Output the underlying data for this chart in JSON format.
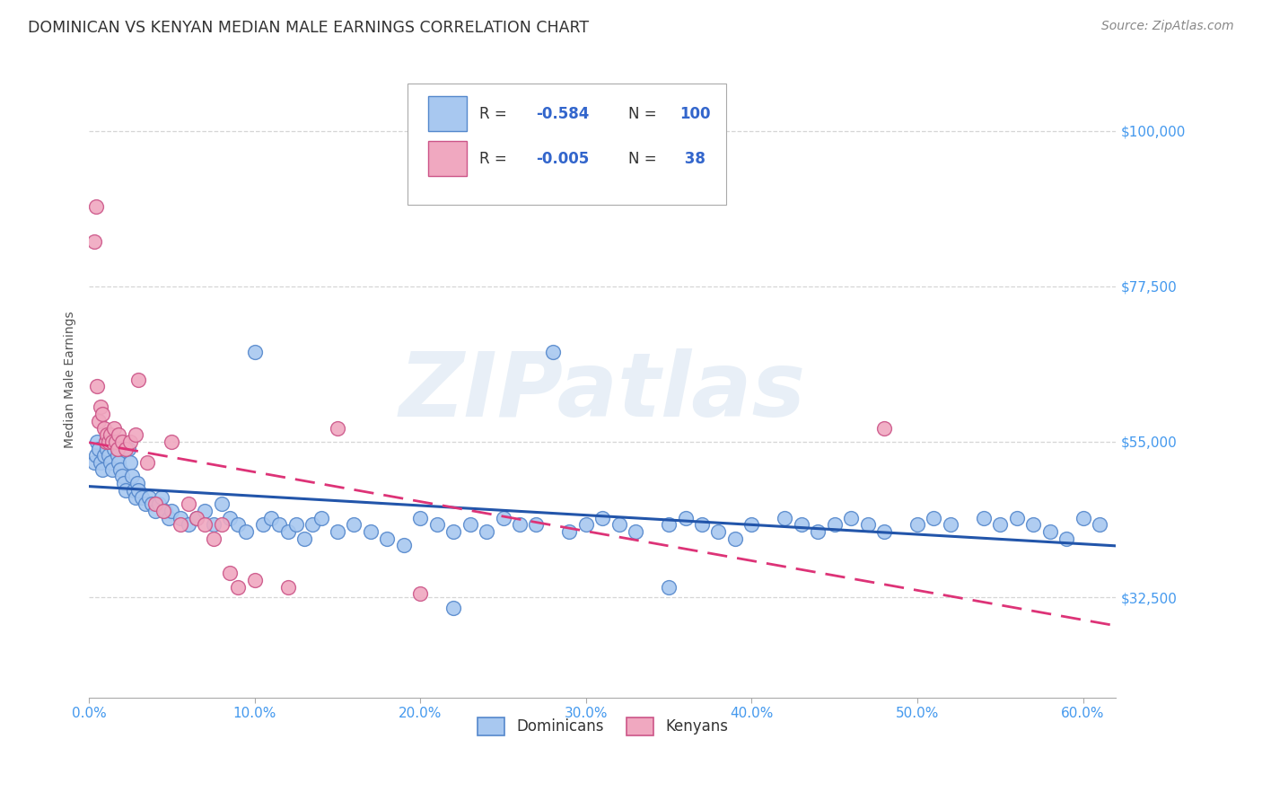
{
  "title": "DOMINICAN VS KENYAN MEDIAN MALE EARNINGS CORRELATION CHART",
  "source": "Source: ZipAtlas.com",
  "ylabel": "Median Male Earnings",
  "xlim": [
    0.0,
    0.62
  ],
  "ylim": [
    18000,
    110000
  ],
  "ytick_labels": [
    "$32,500",
    "$55,000",
    "$77,500",
    "$100,000"
  ],
  "ytick_values": [
    32500,
    55000,
    77500,
    100000
  ],
  "xtick_labels": [
    "0.0%",
    "10.0%",
    "20.0%",
    "30.0%",
    "40.0%",
    "50.0%",
    "60.0%"
  ],
  "xtick_values": [
    0.0,
    0.1,
    0.2,
    0.3,
    0.4,
    0.5,
    0.6
  ],
  "dominican_color": "#a8c8f0",
  "kenyan_color": "#f0a8c0",
  "dominican_edge": "#5588cc",
  "kenyan_edge": "#cc5588",
  "dominican_line_color": "#2255aa",
  "kenyan_line_color": "#dd3377",
  "watermark": "ZIPatlas",
  "background_color": "#ffffff",
  "grid_color": "#cccccc",
  "dominican_x": [
    0.003,
    0.004,
    0.005,
    0.006,
    0.007,
    0.008,
    0.009,
    0.01,
    0.011,
    0.012,
    0.013,
    0.014,
    0.015,
    0.016,
    0.017,
    0.018,
    0.019,
    0.02,
    0.021,
    0.022,
    0.024,
    0.025,
    0.026,
    0.027,
    0.028,
    0.029,
    0.03,
    0.032,
    0.034,
    0.036,
    0.038,
    0.04,
    0.042,
    0.044,
    0.046,
    0.048,
    0.05,
    0.055,
    0.06,
    0.065,
    0.07,
    0.075,
    0.08,
    0.085,
    0.09,
    0.095,
    0.1,
    0.105,
    0.11,
    0.115,
    0.12,
    0.125,
    0.13,
    0.135,
    0.14,
    0.15,
    0.16,
    0.17,
    0.18,
    0.19,
    0.2,
    0.21,
    0.22,
    0.23,
    0.24,
    0.25,
    0.26,
    0.27,
    0.28,
    0.29,
    0.3,
    0.31,
    0.32,
    0.33,
    0.35,
    0.36,
    0.37,
    0.38,
    0.39,
    0.4,
    0.42,
    0.43,
    0.44,
    0.45,
    0.46,
    0.47,
    0.48,
    0.5,
    0.51,
    0.52,
    0.54,
    0.55,
    0.56,
    0.57,
    0.58,
    0.59,
    0.6,
    0.61,
    0.35,
    0.22
  ],
  "dominican_y": [
    52000,
    53000,
    55000,
    54000,
    52000,
    51000,
    53000,
    55000,
    54000,
    53000,
    52000,
    51000,
    54000,
    55000,
    53000,
    52000,
    51000,
    50000,
    49000,
    48000,
    54000,
    52000,
    50000,
    48000,
    47000,
    49000,
    48000,
    47000,
    46000,
    47000,
    46000,
    45000,
    46000,
    47000,
    45000,
    44000,
    45000,
    44000,
    43000,
    44000,
    45000,
    43000,
    46000,
    44000,
    43000,
    42000,
    68000,
    43000,
    44000,
    43000,
    42000,
    43000,
    41000,
    43000,
    44000,
    42000,
    43000,
    42000,
    41000,
    40000,
    44000,
    43000,
    42000,
    43000,
    42000,
    44000,
    43000,
    43000,
    68000,
    42000,
    43000,
    44000,
    43000,
    42000,
    43000,
    44000,
    43000,
    42000,
    41000,
    43000,
    44000,
    43000,
    42000,
    43000,
    44000,
    43000,
    42000,
    43000,
    44000,
    43000,
    44000,
    43000,
    44000,
    43000,
    42000,
    41000,
    44000,
    43000,
    34000,
    31000
  ],
  "kenyan_x": [
    0.003,
    0.004,
    0.005,
    0.006,
    0.007,
    0.008,
    0.009,
    0.01,
    0.011,
    0.012,
    0.013,
    0.014,
    0.015,
    0.016,
    0.017,
    0.018,
    0.02,
    0.022,
    0.025,
    0.028,
    0.03,
    0.035,
    0.04,
    0.045,
    0.05,
    0.055,
    0.06,
    0.065,
    0.07,
    0.075,
    0.08,
    0.085,
    0.09,
    0.1,
    0.12,
    0.15,
    0.2,
    0.48
  ],
  "kenyan_y": [
    84000,
    89000,
    63000,
    58000,
    60000,
    59000,
    57000,
    55000,
    56000,
    55000,
    56000,
    55000,
    57000,
    55000,
    54000,
    56000,
    55000,
    54000,
    55000,
    56000,
    64000,
    52000,
    46000,
    45000,
    55000,
    43000,
    46000,
    44000,
    43000,
    41000,
    43000,
    36000,
    34000,
    35000,
    34000,
    57000,
    33000,
    57000
  ]
}
